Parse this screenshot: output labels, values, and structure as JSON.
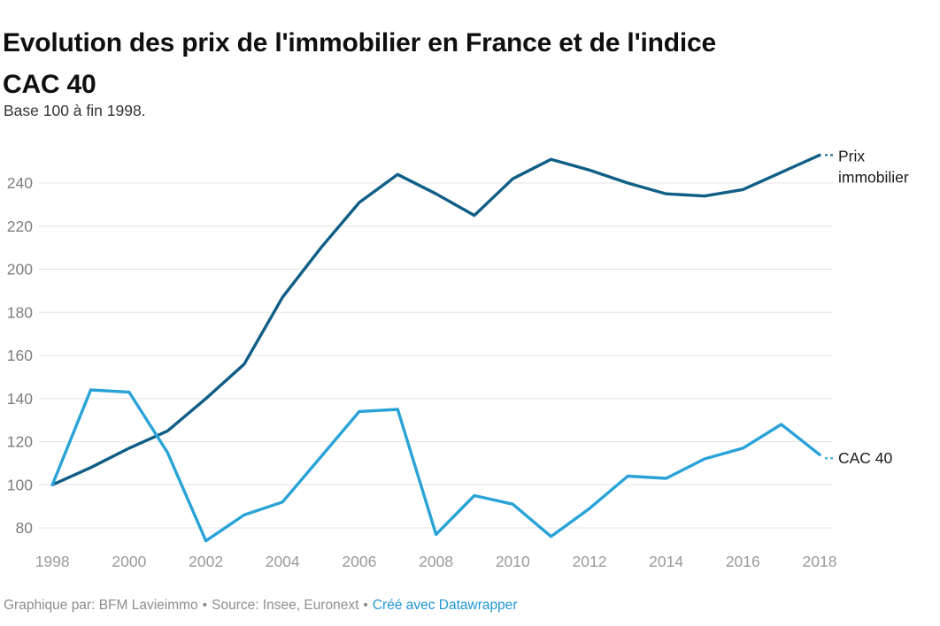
{
  "chart_data": {
    "type": "line",
    "title": "Evolution des prix de l'immobilier en France et de l'indice CAC 40",
    "title_lines": [
      "Evolution des prix de l'immobilier en France et de l'indice",
      "CAC 40"
    ],
    "subtitle": "Base 100 à fin 1998.",
    "x": [
      1998,
      1999,
      2000,
      2001,
      2002,
      2003,
      2004,
      2005,
      2006,
      2007,
      2008,
      2009,
      2010,
      2011,
      2012,
      2013,
      2014,
      2015,
      2016,
      2017,
      2018
    ],
    "series": [
      {
        "id": "prix-immobilier",
        "name": "Prix immobilier",
        "label_lines": [
          "Prix",
          "immobilier"
        ],
        "color": "#105e86",
        "values": [
          100,
          108,
          117,
          125,
          140,
          156,
          187,
          210,
          231,
          244,
          235,
          225,
          242,
          251,
          246,
          240,
          235,
          234,
          237,
          245,
          253
        ]
      },
      {
        "id": "cac-40",
        "name": "CAC 40",
        "label_lines": [
          "CAC 40"
        ],
        "color": "#29a3d7",
        "values": [
          100,
          144,
          143,
          115,
          74,
          86,
          92,
          113,
          134,
          135,
          77,
          95,
          91,
          76,
          89,
          104,
          103,
          112,
          117,
          128,
          114
        ]
      }
    ],
    "xticks": [
      1998,
      2000,
      2002,
      2004,
      2006,
      2008,
      2010,
      2012,
      2014,
      2016,
      2018
    ],
    "yticks": [
      80,
      100,
      120,
      140,
      160,
      180,
      200,
      220,
      240
    ],
    "ylim": [
      70,
      258
    ],
    "xlabel": "",
    "ylabel": "",
    "grid": "horizontal",
    "legend_position": "direct-labels-right"
  },
  "footer": {
    "byline": "Graphique par: BFM Lavieimmo",
    "sep1": "•",
    "source": "Source: Insee, Euronext",
    "sep2": "•",
    "link": "Créé avec Datawrapper"
  },
  "colors": {
    "background": "#ffffff",
    "grid": "#e4e4e4",
    "y_tick_label": "#7d7d7d",
    "x_tick_label": "#9a9a9a",
    "series_label_text": "#1a1a1a",
    "title": "#0f0f0f",
    "subtitle": "#333333",
    "footer_text": "#8d8d8d",
    "link": "#1e96d5"
  }
}
